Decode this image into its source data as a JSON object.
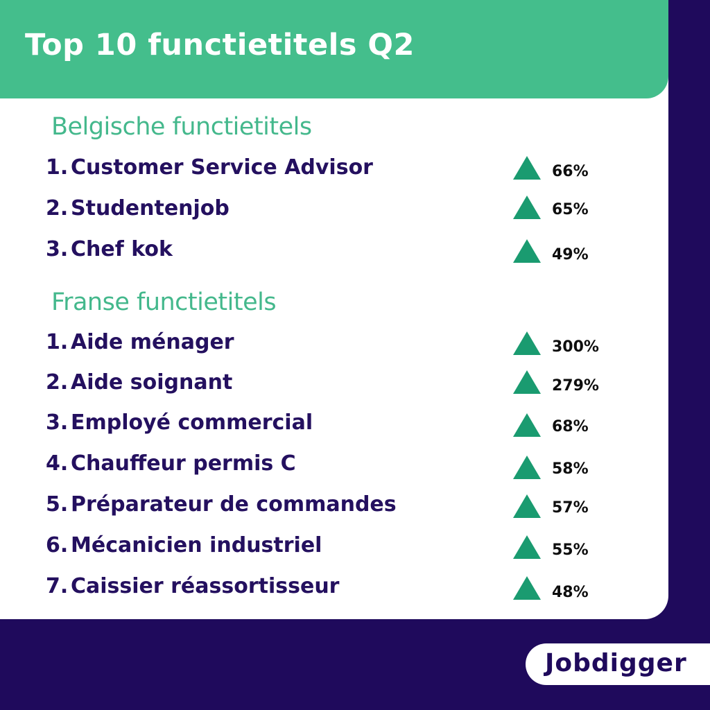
{
  "header": {
    "title": "Top 10 functietitels Q2"
  },
  "sections": [
    {
      "heading": "Belgische functietitels",
      "items": [
        {
          "rank": "1.",
          "title": "Customer Service Advisor",
          "change": "66%"
        },
        {
          "rank": "2.",
          "title": "Studentenjob",
          "change": "65%"
        },
        {
          "rank": "3.",
          "title": "Chef kok",
          "change": "49%"
        }
      ]
    },
    {
      "heading": "Franse functietitels",
      "items": [
        {
          "rank": "1.",
          "title": "Aide ménager",
          "change": "300%"
        },
        {
          "rank": "2.",
          "title": "Aide soignant",
          "change": "279%"
        },
        {
          "rank": "3.",
          "title": "Employé commercial",
          "change": "68%"
        },
        {
          "rank": "4.",
          "title": "Chauffeur permis C",
          "change": "58%"
        },
        {
          "rank": "5.",
          "title": "Préparateur de commandes",
          "change": "57%"
        },
        {
          "rank": "6.",
          "title": "Mécanicien industriel",
          "change": "55%"
        },
        {
          "rank": "7.",
          "title": "Caissier réassortisseur",
          "change": "48%"
        }
      ]
    }
  ],
  "trend_icon": "triangle-up-icon",
  "colors": {
    "background": "#1f0a5c",
    "header": "#44be8c",
    "heading": "#44b88c",
    "title_text": "#24105f",
    "trend": "#1a9b70"
  },
  "logo": {
    "text": "Jobdigger"
  }
}
